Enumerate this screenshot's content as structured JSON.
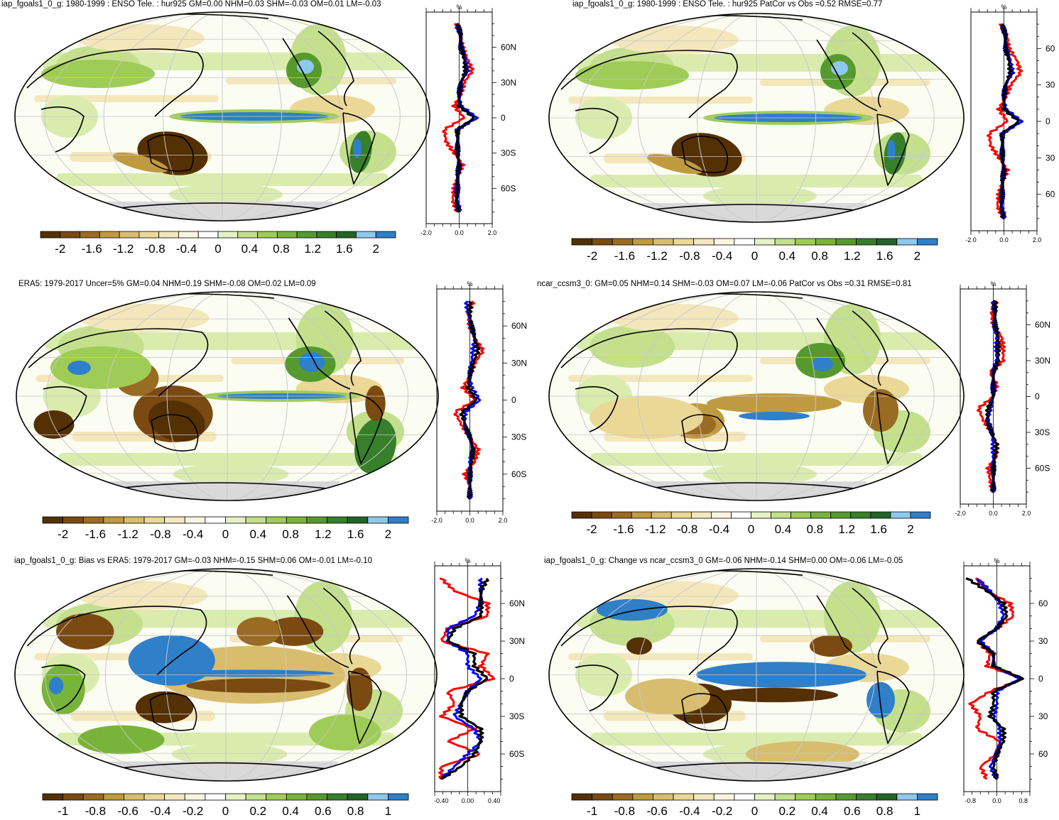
{
  "palette": [
    "#543005",
    "#7a4a12",
    "#9a6b22",
    "#bf9a40",
    "#d9bd6e",
    "#ead896",
    "#f4e7bc",
    "#fbf4df",
    "#ffffff",
    "#e6f2c6",
    "#c4e08c",
    "#9fcc57",
    "#79b43a",
    "#569a2f",
    "#377f2b",
    "#216426",
    "#8ec8ec",
    "#2f7fc9"
  ],
  "colors": {
    "model": "#0000ff",
    "obs": "#ff0000",
    "black": "#000000",
    "land_missing": "#d9d9d9"
  },
  "panels": [
    {
      "id": "p1",
      "title": "iap_fgoals1_0_g: 1980-1999 : ENSO Tele. : hur925 GM=0.00 NHM=0.03 SHM=-0.03 OM=0.01 LM=-0.03",
      "colorbar_labels": [
        "-2",
        "-1.6",
        "-1.2",
        "-0.8",
        "-0.4",
        "0",
        "0.4",
        "0.8",
        "1.2",
        "1.6",
        "2"
      ],
      "chart_data": {
        "type": "line",
        "unit_label": "%",
        "xlim": [
          -2.0,
          2.0
        ],
        "x_tick_labels": [
          "-2.0",
          "0.0",
          "2.0"
        ],
        "y_tick_labels": [
          "60N",
          "30N",
          "0",
          "30S",
          "60S"
        ],
        "lat": [
          80,
          70,
          60,
          50,
          40,
          30,
          20,
          10,
          0,
          -10,
          -20,
          -30,
          -40,
          -50,
          -60,
          -70,
          -80
        ],
        "series": [
          {
            "color": "#ff0000",
            "values": [
              -0.2,
              0.1,
              0.2,
              0.5,
              0.8,
              0.3,
              0.1,
              -0.3,
              0.3,
              -0.9,
              -0.8,
              -0.3,
              0.2,
              -0.1,
              -0.3,
              -0.4,
              -0.1
            ]
          },
          {
            "color": "#0000ff",
            "values": [
              -0.1,
              0.1,
              0.1,
              0.4,
              0.5,
              0.1,
              0.0,
              0.1,
              1.1,
              -0.1,
              -0.1,
              -0.1,
              0.0,
              -0.1,
              -0.1,
              -0.1,
              0.0
            ]
          },
          {
            "color": "#000000",
            "values": [
              -0.1,
              0.1,
              0.1,
              0.3,
              0.4,
              0.1,
              0.0,
              0.0,
              0.9,
              -0.1,
              -0.1,
              -0.1,
              0.0,
              -0.1,
              -0.1,
              -0.2,
              0.0
            ]
          }
        ]
      }
    },
    {
      "id": "p2",
      "title": "iap_fgoals1_0_g: 1980-1999 : ENSO Tele. : hur925 PatCor vs Obs =0.52 RMSE=0.77",
      "colorbar_labels": [
        "-2",
        "-1.6",
        "-1.2",
        "-0.8",
        "-0.4",
        "0",
        "0.4",
        "0.8",
        "1.2",
        "1.6",
        "2"
      ],
      "chart_data": {
        "type": "line",
        "unit_label": "%",
        "xlim": [
          -2.0,
          2.0
        ],
        "x_tick_labels": [
          "-2.0",
          "0.0",
          "2.0"
        ],
        "y_tick_labels": [
          "60",
          "30",
          "0",
          "30",
          "60"
        ],
        "lat": [
          80,
          70,
          60,
          50,
          40,
          30,
          20,
          10,
          0,
          -10,
          -20,
          -30,
          -40,
          -50,
          -60,
          -70,
          -80
        ],
        "series": [
          {
            "color": "#ff0000",
            "values": [
              -0.2,
              0.2,
              0.3,
              0.8,
              1.0,
              0.4,
              0.1,
              -0.3,
              0.2,
              -0.9,
              -0.8,
              -0.3,
              0.2,
              -0.1,
              -0.3,
              -0.4,
              0.0
            ]
          },
          {
            "color": "#0000ff",
            "values": [
              -0.1,
              0.1,
              0.1,
              0.4,
              0.5,
              0.1,
              0.0,
              0.1,
              1.1,
              -0.1,
              -0.1,
              -0.1,
              0.0,
              -0.1,
              -0.1,
              -0.1,
              0.0
            ]
          },
          {
            "color": "#000000",
            "values": [
              -0.1,
              0.1,
              0.1,
              0.3,
              0.4,
              0.1,
              0.0,
              0.0,
              0.9,
              -0.1,
              -0.1,
              -0.1,
              0.0,
              -0.1,
              -0.1,
              -0.2,
              0.0
            ]
          }
        ]
      }
    },
    {
      "id": "p3",
      "title": "ERA5: 1979-2017 Uncer=5% GM=0.04 NHM=0.19 SHM=-0.08 OM=0.02 LM=0.09",
      "colorbar_labels": [
        "-2",
        "-1.6",
        "-1.2",
        "-0.8",
        "-0.4",
        "0",
        "0.4",
        "0.8",
        "1.2",
        "1.6",
        "2"
      ],
      "chart_data": {
        "type": "line",
        "unit_label": "%",
        "xlim": [
          -2.0,
          2.0
        ],
        "x_tick_labels": [
          "-2.0",
          "0.0",
          "2.0"
        ],
        "y_tick_labels": [
          "60N",
          "30N",
          "0",
          "30S",
          "60S"
        ],
        "lat": [
          80,
          70,
          60,
          50,
          40,
          30,
          20,
          10,
          0,
          -10,
          -20,
          -30,
          -40,
          -50,
          -60,
          -70,
          -80
        ],
        "series": [
          {
            "color": "#ff0000",
            "values": [
              0.2,
              -0.1,
              0.0,
              0.3,
              0.8,
              0.3,
              0.0,
              -0.4,
              0.3,
              -0.9,
              -0.5,
              0.0,
              0.5,
              0.3,
              -0.3,
              0.0,
              0.0
            ]
          },
          {
            "color": "#0000ff",
            "values": [
              -0.2,
              -0.1,
              0.1,
              0.3,
              0.2,
              0.1,
              0.0,
              0.1,
              0.6,
              -0.3,
              -0.3,
              0.0,
              0.2,
              0.0,
              0.0,
              0.0,
              0.0
            ]
          },
          {
            "color": "#000000",
            "values": [
              0.0,
              0.0,
              0.1,
              0.3,
              0.5,
              0.2,
              0.0,
              -0.1,
              0.4,
              -0.5,
              -0.3,
              0.0,
              0.2,
              0.1,
              0.0,
              0.0,
              0.0
            ]
          }
        ]
      }
    },
    {
      "id": "p4",
      "title": "ncar_ccsm3_0: GM=0.05 NHM=0.14 SHM=-0.03 OM=0.07 LM=-0.06 PatCor vs Obs =0.31 RMSE=0.81",
      "colorbar_labels": [
        "-2",
        "-1.6",
        "-1.2",
        "-0.8",
        "-0.4",
        "0",
        "0.4",
        "0.8",
        "1.2",
        "1.6",
        "2"
      ],
      "chart_data": {
        "type": "line",
        "unit_label": "%",
        "xlim": [
          -2.0,
          2.0
        ],
        "x_tick_labels": [
          "-2.0",
          "0.0",
          "2.0"
        ],
        "y_tick_labels": [
          "60N",
          "30N",
          "0",
          "30S",
          "60S"
        ],
        "lat": [
          80,
          70,
          60,
          50,
          40,
          30,
          20,
          10,
          0,
          -10,
          -20,
          -30,
          -40,
          -50,
          -60,
          -70,
          -80
        ],
        "series": [
          {
            "color": "#ff0000",
            "values": [
              0.2,
              -0.1,
              0.0,
              0.5,
              0.6,
              0.6,
              -0.2,
              0.2,
              0.0,
              -0.9,
              -0.6,
              -0.1,
              0.2,
              0.2,
              -0.3,
              -0.2,
              0.0
            ]
          },
          {
            "color": "#0000ff",
            "values": [
              0.0,
              0.1,
              0.1,
              0.2,
              0.2,
              0.2,
              0.0,
              0.0,
              0.0,
              -0.2,
              -0.3,
              -0.1,
              0.0,
              0.0,
              0.0,
              0.0,
              0.0
            ]
          },
          {
            "color": "#000000",
            "values": [
              0.1,
              0.1,
              0.1,
              0.3,
              0.3,
              0.3,
              0.0,
              0.0,
              0.0,
              -0.3,
              -0.4,
              -0.1,
              0.2,
              0.1,
              0.0,
              0.0,
              0.0
            ]
          }
        ]
      }
    },
    {
      "id": "p5",
      "title": "iap_fgoals1_0_g: Bias vs ERA5: 1979-2017 GM=-0.03 NHM=-0.15 SHM=0.06 OM=-0.01 LM=-0.10",
      "colorbar_labels": [
        "-1",
        "-0.8",
        "-0.6",
        "-0.4",
        "-0.2",
        "0",
        "0.2",
        "0.4",
        "0.6",
        "0.8",
        "1"
      ],
      "chart_data": {
        "type": "line",
        "unit_label": "%",
        "xlim": [
          -0.5,
          0.5
        ],
        "x_tick_labels": [
          "-0.40",
          "0.00",
          "0.40"
        ],
        "y_tick_labels": [
          "60N",
          "30N",
          "0",
          "30S",
          "60S"
        ],
        "lat": [
          80,
          70,
          60,
          50,
          40,
          30,
          20,
          10,
          0,
          -10,
          -20,
          -30,
          -40,
          -50,
          -60,
          -70,
          -80
        ],
        "series": [
          {
            "color": "#ff0000",
            "values": [
              -0.4,
              -0.2,
              0.3,
              0.3,
              -0.3,
              -0.4,
              0.3,
              0.2,
              0.4,
              -0.3,
              -0.2,
              -0.4,
              0.1,
              -0.3,
              0.2,
              -0.4,
              -0.4
            ]
          },
          {
            "color": "#0000ff",
            "values": [
              0.2,
              0.2,
              0.2,
              0.1,
              -0.3,
              -0.3,
              0.0,
              0.0,
              0.2,
              0.0,
              -0.1,
              -0.2,
              0.1,
              0.2,
              0.0,
              -0.2,
              -0.4
            ]
          },
          {
            "color": "#000000",
            "values": [
              0.3,
              0.2,
              0.2,
              0.2,
              -0.2,
              -0.3,
              0.1,
              0.1,
              0.3,
              0.0,
              -0.1,
              -0.1,
              0.2,
              0.2,
              0.1,
              -0.1,
              -0.4
            ]
          }
        ]
      }
    },
    {
      "id": "p6",
      "title": "iap_fgoals1_0_g: Change vs ncar_ccsm3_0 GM=-0.06 NHM=-0.14 SHM=0.00 OM=-0.06 LM=-0.05",
      "colorbar_labels": [
        "-1",
        "-0.8",
        "-0.6",
        "-0.4",
        "-0.2",
        "0",
        "0.2",
        "0.4",
        "0.6",
        "0.8",
        "1"
      ],
      "chart_data": {
        "type": "line",
        "unit_label": "%",
        "xlim": [
          -1.0,
          1.0
        ],
        "x_tick_labels": [
          "-0.8",
          "0.0",
          "0.8"
        ],
        "y_tick_labels": [
          "60",
          "30",
          "0",
          "30",
          "60"
        ],
        "lat": [
          80,
          70,
          60,
          50,
          40,
          30,
          20,
          10,
          0,
          -10,
          -20,
          -30,
          -40,
          -50,
          -60,
          -70,
          -80
        ],
        "series": [
          {
            "color": "#ff0000",
            "values": [
              -0.6,
              -0.3,
              0.4,
              0.5,
              0.0,
              -0.6,
              -0.2,
              -0.3,
              0.8,
              -0.2,
              -0.8,
              -0.5,
              -0.6,
              0.1,
              0.0,
              -0.5,
              -0.3
            ]
          },
          {
            "color": "#0000ff",
            "values": [
              -0.6,
              -0.2,
              0.1,
              0.2,
              0.0,
              -0.5,
              -0.1,
              -0.1,
              0.7,
              0.0,
              0.0,
              -0.1,
              0.1,
              0.1,
              0.0,
              -0.2,
              0.0
            ]
          },
          {
            "color": "#000000",
            "values": [
              -0.9,
              -0.3,
              0.2,
              0.3,
              0.0,
              -0.6,
              -0.1,
              -0.1,
              0.8,
              -0.1,
              -0.1,
              -0.2,
              0.2,
              0.2,
              0.0,
              -0.1,
              0.0
            ]
          }
        ]
      }
    }
  ]
}
